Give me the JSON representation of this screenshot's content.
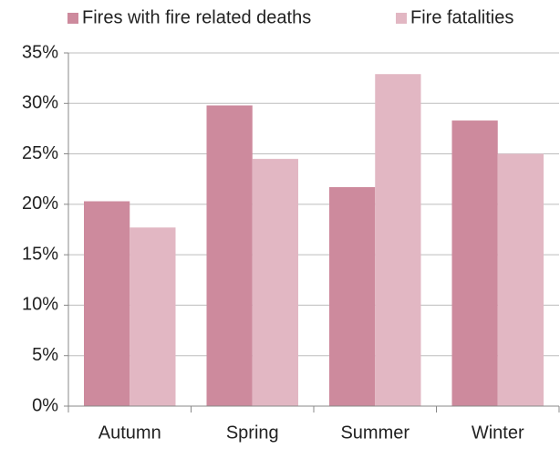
{
  "chart_data": {
    "type": "bar",
    "categories": [
      "Autumn",
      "Spring",
      "Summer",
      "Winter"
    ],
    "series": [
      {
        "name": "Fires with fire related deaths",
        "color": "#cd8a9d",
        "values": [
          20.3,
          29.8,
          21.7,
          28.3
        ]
      },
      {
        "name": "Fire fatalities",
        "color": "#e2b7c3",
        "values": [
          17.7,
          24.5,
          32.9,
          25.0
        ]
      }
    ],
    "ylim": [
      0,
      35
    ],
    "yticks": [
      {
        "value": 0,
        "label": "0%"
      },
      {
        "value": 5,
        "label": "5%"
      },
      {
        "value": 10,
        "label": "10%"
      },
      {
        "value": 15,
        "label": "15%"
      },
      {
        "value": 20,
        "label": "20%"
      },
      {
        "value": 25,
        "label": "25%"
      },
      {
        "value": 30,
        "label": "30%"
      },
      {
        "value": 35,
        "label": "35%"
      }
    ],
    "grid": true,
    "legend": "top"
  }
}
